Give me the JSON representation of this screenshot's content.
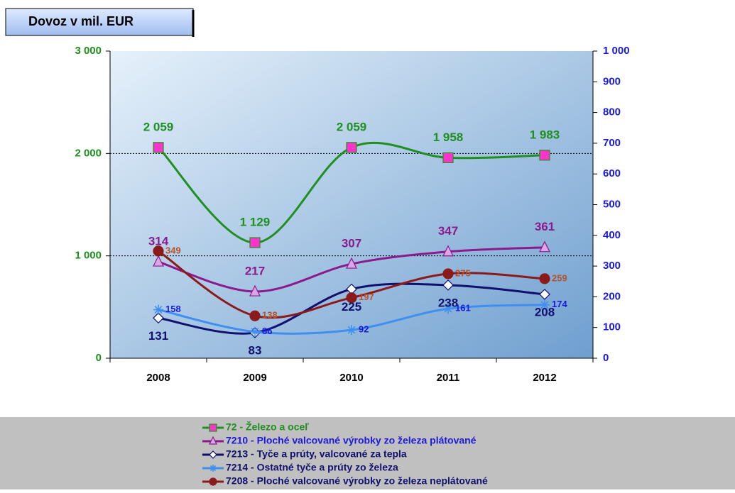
{
  "chart_data": {
    "type": "line",
    "title": "Dovoz v mil. EUR",
    "categories": [
      "2008",
      "2009",
      "2010",
      "2011",
      "2012"
    ],
    "ylim": [
      0,
      3000
    ],
    "yticks": [
      0,
      {
        "value": 1000,
        "label": "1 000"
      },
      {
        "value": 2000,
        "label": "2 000"
      },
      {
        "value": 3000,
        "label": "3 000"
      }
    ],
    "y2lim": [
      0,
      1000
    ],
    "y2ticks": [
      0,
      100,
      200,
      300,
      400,
      500,
      600,
      700,
      800,
      900,
      {
        "value": 1000,
        "label": "1 000"
      }
    ],
    "grid": true,
    "series": [
      {
        "name": "72 - Železo a oceľ",
        "color": "#1f8f1f",
        "marker": "square",
        "values": [
          2059,
          1129,
          2059,
          1958,
          1983
        ],
        "value_labels": [
          "2 059",
          "1 129",
          "2 059",
          "1 958",
          "1 983"
        ]
      },
      {
        "name": "7210 - Ploché valcované výrobky zo železa  plátované",
        "color": "#8b1a8b",
        "marker": "triangle",
        "axis": "y2",
        "values": [
          314,
          217,
          307,
          347,
          361
        ]
      },
      {
        "name": "7213 - Tyče a prúty, valcované za tepla",
        "color": "#10106e",
        "marker": "diamond",
        "axis": "y2",
        "values": [
          131,
          83,
          225,
          238,
          208
        ]
      },
      {
        "name": "7214 - Ostatné tyče a prúty zo železa",
        "color": "#3f8ff0",
        "marker": "star",
        "axis": "y2",
        "values": [
          158,
          86,
          92,
          161,
          174
        ]
      },
      {
        "name": "7208 - Ploché valcované výrobky zo železa neplátované",
        "color": "#8b1a1a",
        "marker": "circle",
        "axis": "y2",
        "values": [
          349,
          138,
          197,
          275,
          259
        ]
      }
    ]
  }
}
